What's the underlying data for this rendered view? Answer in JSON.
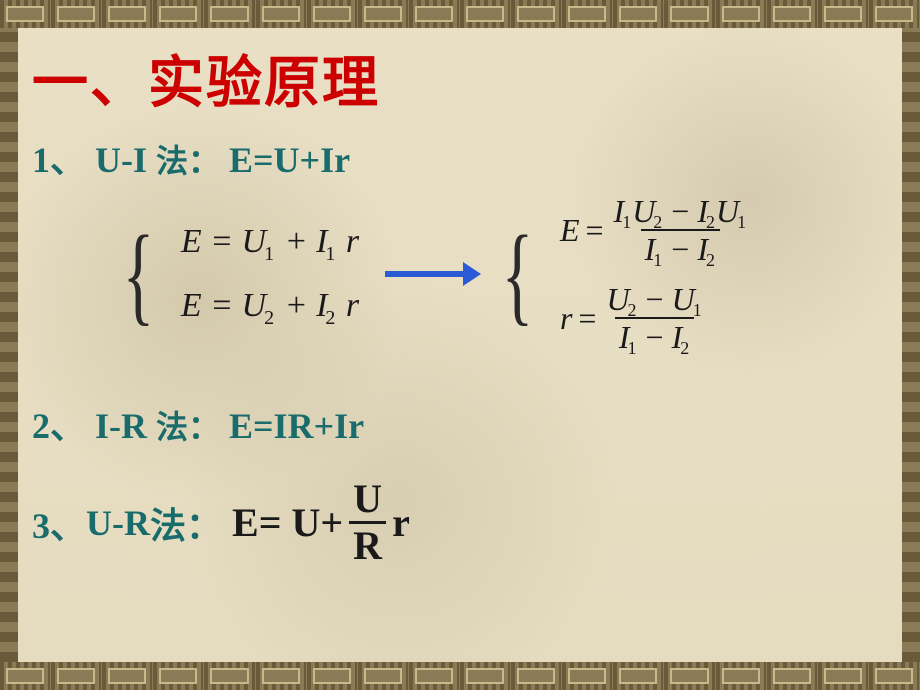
{
  "title": "一、实验原理",
  "methods": {
    "m1": {
      "num": "1、",
      "name": "U-I",
      "fa": "法：",
      "formula": "E=U+Ir"
    },
    "m2": {
      "num": "2、",
      "name": "I-R",
      "fa": "法：",
      "formula": "E=IR+Ir"
    },
    "m3": {
      "num": "3、",
      "name": "U-R",
      "fa": "法：",
      "prefix": "E= U+",
      "frac_num": "U",
      "frac_den": "R",
      "suffix": "r"
    }
  },
  "eq_left": {
    "eq1": {
      "E": "E",
      "U": "U",
      "Usub": "1",
      "I": "I",
      "Isub": "1",
      "r": "r"
    },
    "eq2": {
      "E": "E",
      "U": "U",
      "Usub": "2",
      "I": "I",
      "Isub": "2",
      "r": "r"
    }
  },
  "eq_right": {
    "E_eq": {
      "lhs": "E",
      "num_parts": [
        "I",
        "1",
        "U",
        "2",
        " − ",
        "I",
        "2",
        "U",
        "1"
      ],
      "den_parts": [
        "I",
        "1",
        " − ",
        "I",
        "2"
      ]
    },
    "r_eq": {
      "lhs": "r",
      "num_parts": [
        "U",
        "2",
        " − ",
        "U",
        "1"
      ],
      "den_parts": [
        "I",
        "1",
        " − ",
        "I",
        "2"
      ]
    }
  },
  "colors": {
    "title": "#cc0000",
    "teal": "#1a6b6b",
    "black": "#1a1a1a",
    "arrow": "#2a5ad6",
    "bg": "#e8dfc5",
    "border_dark": "#6b5a3a",
    "border_light": "#8a7a55"
  }
}
